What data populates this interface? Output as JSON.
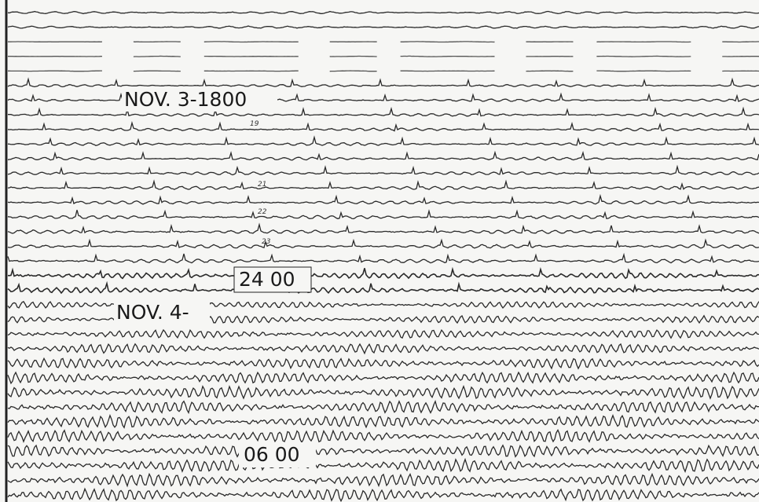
{
  "labels": {
    "nov3": "NOV. 3-1800",
    "h24": "24 00",
    "nov4": "NOV. 4-",
    "h06": "06 00"
  },
  "hour_marks": [
    "19",
    "21",
    "22",
    "23"
  ]
}
